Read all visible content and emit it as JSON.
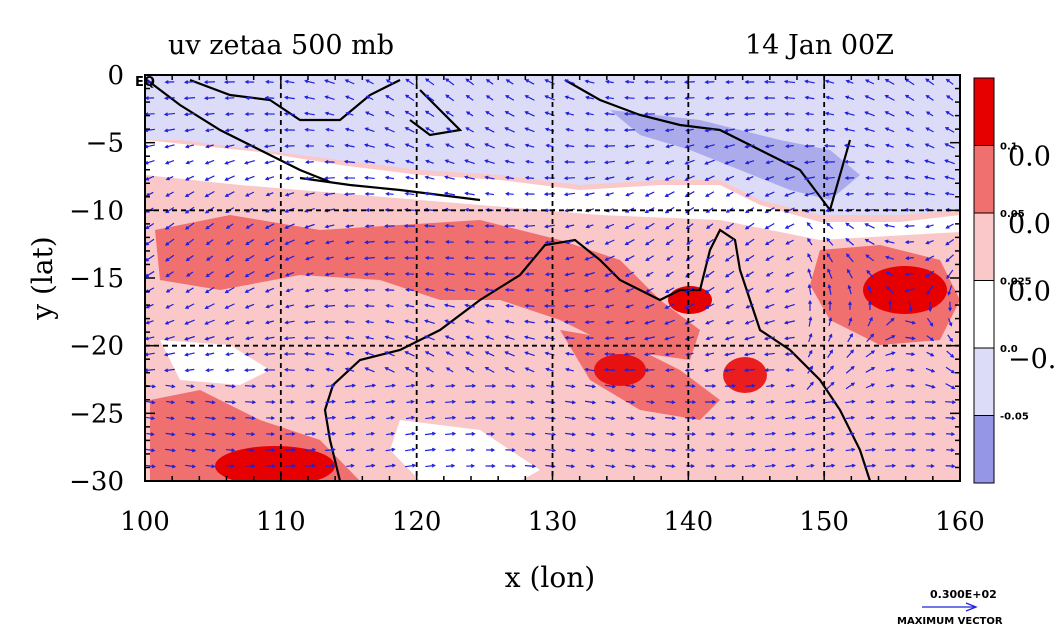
{
  "chart_data": {
    "type": "heatmap",
    "title_left": "uv zetaa 500 mb",
    "title_right": "14 Jan 00Z",
    "xlabel": "x (lon)",
    "ylabel": "y (lat)",
    "xlim": [
      100,
      160
    ],
    "ylim": [
      -30,
      0
    ],
    "x_ticks": [
      "100",
      "110",
      "120",
      "130",
      "140",
      "150",
      "160"
    ],
    "y_ticks": [
      "0",
      "−5",
      "−10",
      "−15",
      "−20",
      "−25",
      "−30"
    ],
    "eq_label": "EQ",
    "grid": true,
    "colorbar": {
      "colors": [
        "#e60000",
        "#f07070",
        "#fac8c8",
        "#ffffff",
        "#dcdcf8",
        "#9696e6"
      ],
      "labels": [
        "0.1",
        "0.05",
        "0.025",
        "0.0",
        "-0.05"
      ],
      "big_labels": [
        "0.0",
        "0.0",
        "0.0",
        "−0."
      ]
    },
    "vector_legend": {
      "value": "0.300E+02",
      "label": "MAXIMUM VECTOR"
    },
    "colors": {
      "coast": "#000000",
      "vectors": "#2020e0",
      "contour": "#e00000"
    }
  }
}
